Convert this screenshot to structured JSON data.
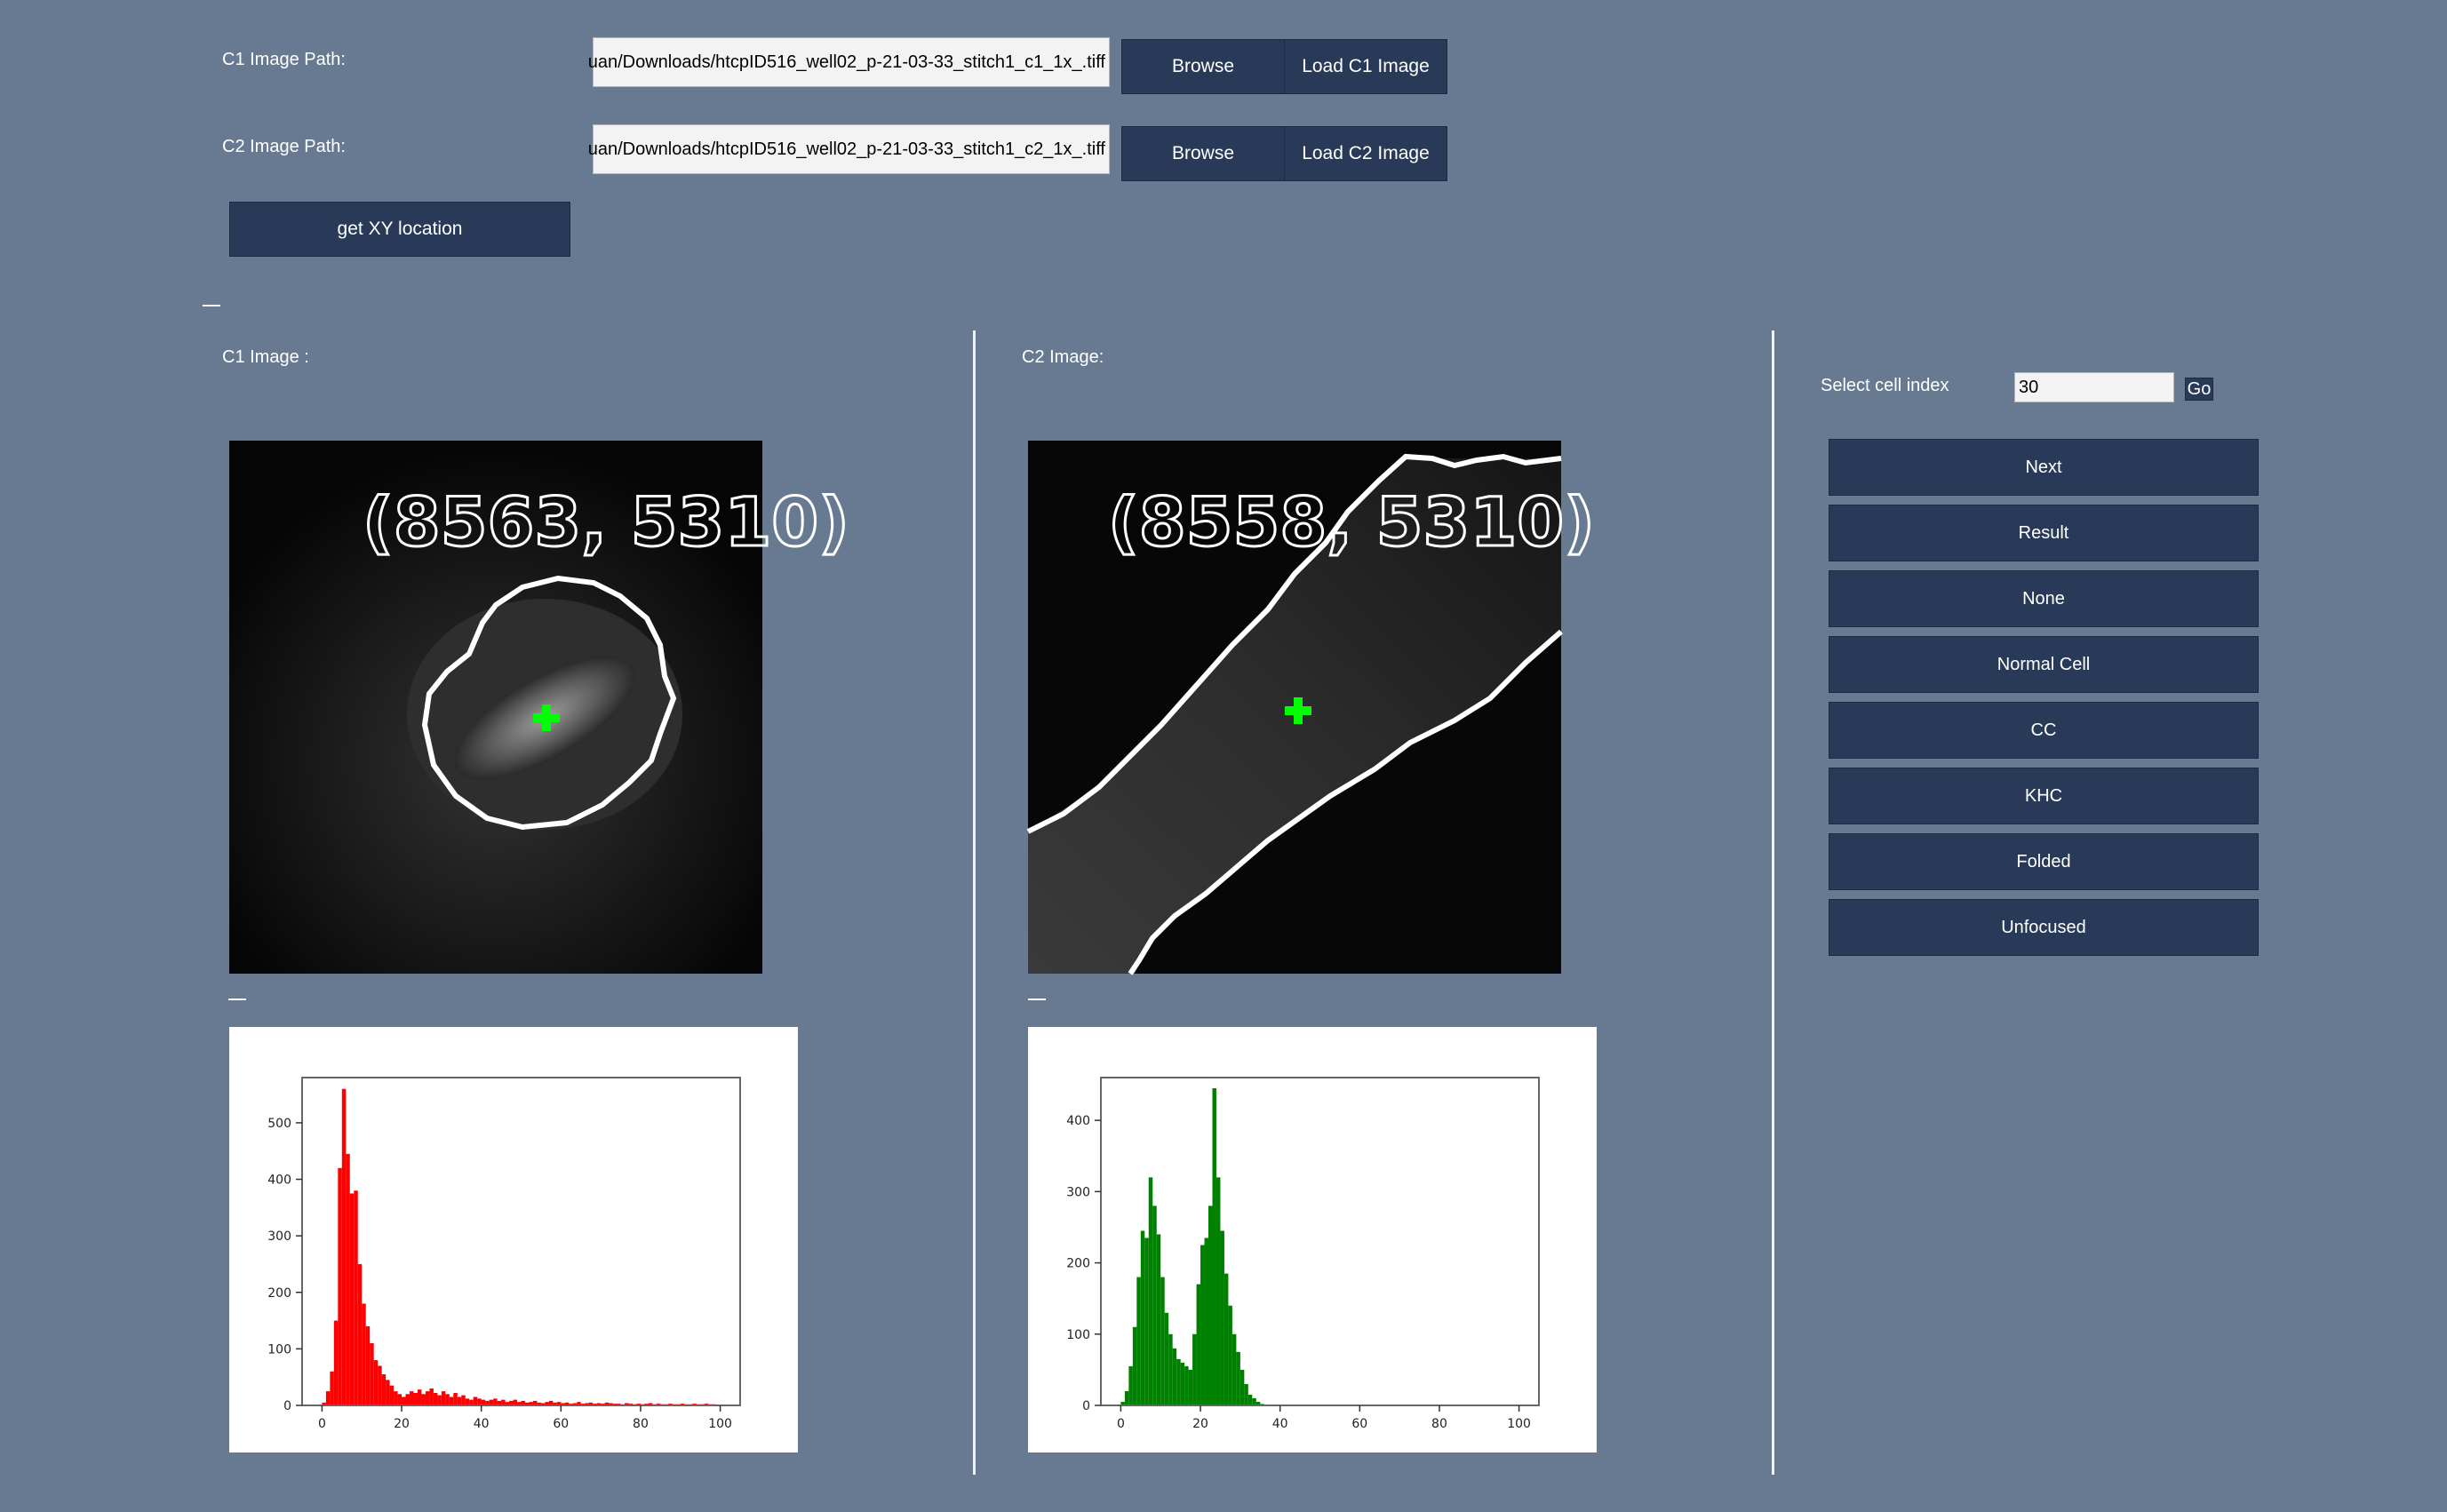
{
  "top": {
    "c1_label": "C1 Image Path:",
    "c1_path": "uan/Downloads/htcpID516_well02_p-21-03-33_stitch1_c1_1x_.tiff",
    "c2_label": "C2 Image Path:",
    "c2_path": "uan/Downloads/htcpID516_well02_p-21-03-33_stitch1_c2_1x_.tiff",
    "browse_label": "Browse",
    "load_c1_label": "Load C1 Image",
    "load_c2_label": "Load C2 Image",
    "get_xy_label": "get XY location"
  },
  "panels": {
    "c1_title": "C1 Image :",
    "c2_title": "C2 Image:",
    "c1_coord": "(8563, 5310)",
    "c2_coord": "(8558, 5310)"
  },
  "side": {
    "select_label": "Select cell index",
    "cell_index": "30",
    "go_label": "Go",
    "buttons": [
      {
        "key": "next",
        "label": "Next"
      },
      {
        "key": "result",
        "label": "Result"
      },
      {
        "key": "none",
        "label": "None"
      },
      {
        "key": "normal-cell",
        "label": "Normal Cell"
      },
      {
        "key": "cc",
        "label": "CC"
      },
      {
        "key": "khc",
        "label": "KHC"
      },
      {
        "key": "folded",
        "label": "Folded"
      },
      {
        "key": "unfocused",
        "label": "Unfocused"
      }
    ]
  },
  "colors": {
    "background": "#677a91",
    "button": "#283a58",
    "c1_hist": "#ff0000",
    "c2_hist": "#008000",
    "marker": "#00ff00"
  },
  "chart_data": [
    {
      "type": "bar",
      "name": "c1-histogram",
      "xlim": [
        -5,
        105
      ],
      "ylim": [
        0,
        580
      ],
      "xticks": [
        0,
        20,
        40,
        60,
        80,
        100
      ],
      "yticks": [
        0,
        100,
        200,
        300,
        400,
        500
      ],
      "color": "#ff0000",
      "x": [
        1,
        2,
        3,
        4,
        5,
        6,
        7,
        8,
        9,
        10,
        11,
        12,
        13,
        14,
        15,
        16,
        17,
        18,
        19,
        20,
        21,
        22,
        23,
        24,
        25,
        26,
        27,
        28,
        29,
        30,
        31,
        32,
        33,
        34,
        35,
        36,
        37,
        38,
        39,
        40,
        41,
        42,
        43,
        44,
        45,
        46,
        47,
        48,
        49,
        50,
        51,
        52,
        53,
        54,
        55,
        56,
        57,
        58,
        59,
        60,
        61,
        62,
        63,
        64,
        65,
        66,
        67,
        68,
        69,
        70,
        71,
        72,
        73,
        74,
        75,
        76,
        77,
        78,
        79,
        80,
        81,
        82,
        83,
        84,
        85,
        86,
        87,
        88,
        89,
        90,
        91,
        92,
        93,
        94,
        95,
        96,
        97,
        98,
        99,
        100
      ],
      "values": [
        5,
        25,
        60,
        150,
        420,
        560,
        445,
        375,
        380,
        250,
        180,
        140,
        110,
        80,
        70,
        55,
        45,
        35,
        25,
        20,
        15,
        20,
        25,
        22,
        28,
        20,
        25,
        30,
        22,
        18,
        25,
        20,
        15,
        22,
        15,
        18,
        12,
        10,
        15,
        12,
        10,
        8,
        10,
        12,
        8,
        10,
        6,
        8,
        10,
        6,
        8,
        5,
        6,
        8,
        5,
        4,
        6,
        8,
        5,
        6,
        4,
        5,
        3,
        4,
        6,
        3,
        4,
        5,
        3,
        4,
        3,
        5,
        4,
        3,
        3,
        2,
        4,
        3,
        2,
        3,
        2,
        3,
        4,
        2,
        3,
        2,
        2,
        3,
        2,
        2,
        3,
        2,
        2,
        3,
        2,
        2,
        3,
        2,
        2,
        1
      ]
    },
    {
      "type": "bar",
      "name": "c2-histogram",
      "xlim": [
        -5,
        105
      ],
      "ylim": [
        0,
        460
      ],
      "xticks": [
        0,
        20,
        40,
        60,
        80,
        100
      ],
      "yticks": [
        0,
        100,
        200,
        300,
        400
      ],
      "color": "#008000",
      "x": [
        1,
        2,
        3,
        4,
        5,
        6,
        7,
        8,
        9,
        10,
        11,
        12,
        13,
        14,
        15,
        16,
        17,
        18,
        19,
        20,
        21,
        22,
        23,
        24,
        25,
        26,
        27,
        28,
        29,
        30,
        31,
        32,
        33,
        34,
        35,
        36
      ],
      "values": [
        5,
        20,
        55,
        110,
        180,
        245,
        235,
        320,
        280,
        240,
        180,
        130,
        100,
        80,
        65,
        60,
        55,
        50,
        100,
        170,
        225,
        235,
        280,
        445,
        320,
        245,
        185,
        140,
        100,
        75,
        50,
        30,
        15,
        10,
        5,
        2
      ]
    }
  ]
}
